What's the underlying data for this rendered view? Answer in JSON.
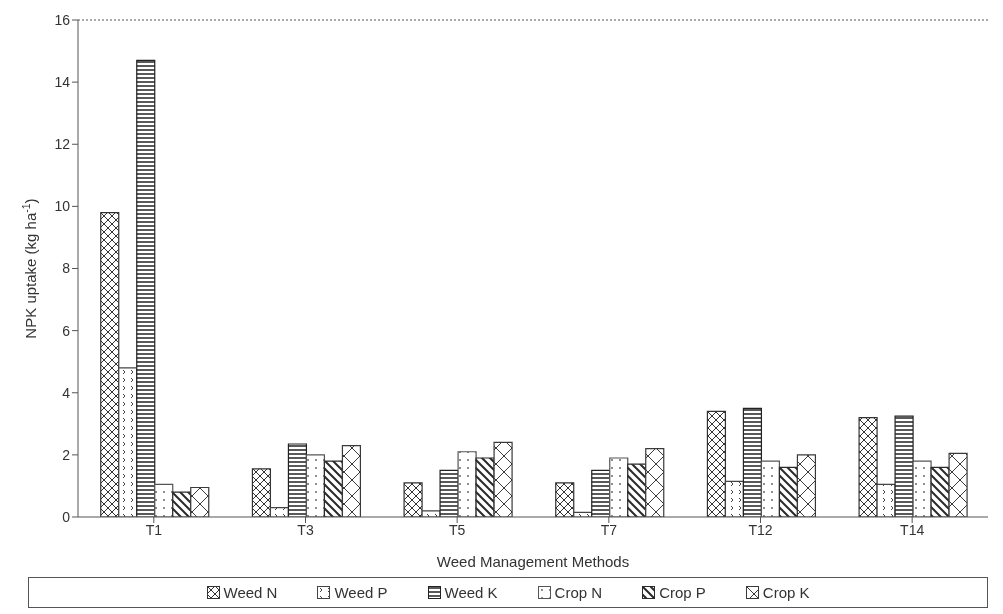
{
  "chart_data": {
    "type": "bar",
    "xlabel": "Weed Management Methods",
    "ylabel": "NPK uptake (kg ha$^{-1}$)",
    "categories": [
      "T1",
      "T3",
      "T5",
      "T7",
      "T12",
      "T14"
    ],
    "series": [
      {
        "name": "Weed N",
        "color": "#333333",
        "values": [
          9.8,
          1.55,
          1.1,
          1.1,
          3.4,
          3.2
        ]
      },
      {
        "name": "Weed P",
        "color": "#444444",
        "values": [
          4.8,
          0.3,
          0.2,
          0.15,
          1.15,
          1.05
        ]
      },
      {
        "name": "Weed K",
        "color": "#222222",
        "values": [
          14.7,
          2.35,
          1.5,
          1.5,
          3.5,
          3.25
        ]
      },
      {
        "name": "Crop N",
        "color": "#555555",
        "values": [
          1.05,
          2.0,
          2.1,
          1.9,
          1.8,
          1.8
        ]
      },
      {
        "name": "Crop P",
        "color": "#2a2a2a",
        "values": [
          0.8,
          1.8,
          1.9,
          1.7,
          1.6,
          1.6
        ]
      },
      {
        "name": "Crop K",
        "color": "#3a3a3a",
        "values": [
          0.95,
          2.3,
          2.4,
          2.2,
          2.0,
          2.05
        ]
      }
    ],
    "ylim": [
      0,
      16
    ],
    "yticks": [
      0,
      2,
      4,
      6,
      8,
      10,
      12,
      14,
      16
    ],
    "legend": "bottom"
  }
}
